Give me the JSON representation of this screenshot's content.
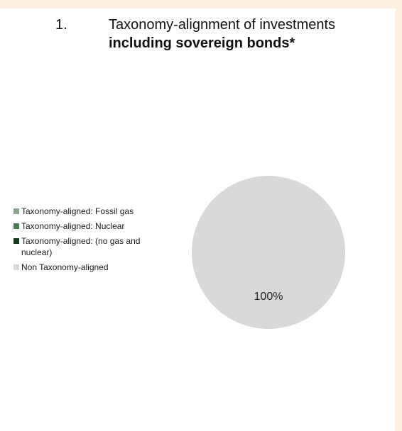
{
  "title": {
    "number": "1.",
    "main": "Taxonomy-alignment of investments",
    "sub": "including sovereign bonds*"
  },
  "chart_data": {
    "type": "pie",
    "categories": [
      "Taxonomy-aligned: Fossil gas",
      "Taxonomy-aligned: Nuclear",
      "Taxonomy-aligned: (no gas and nuclear)",
      "Non Taxonomy-aligned"
    ],
    "values": [
      0,
      0,
      0,
      100
    ],
    "data_labels": [
      "",
      "",
      "",
      "100%"
    ],
    "colors": [
      "#8aa78e",
      "#4f7a56",
      "#123d1b",
      "#d9d9d9"
    ],
    "legend_position": "left"
  }
}
